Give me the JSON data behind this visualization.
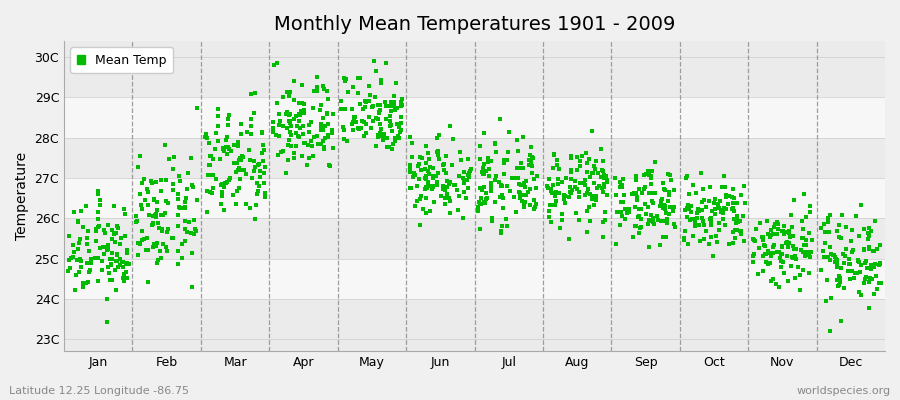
{
  "title": "Monthly Mean Temperatures 1901 - 2009",
  "ylabel": "Temperature",
  "bottom_left": "Latitude 12.25 Longitude -86.75",
  "bottom_right": "worldspecies.org",
  "legend_label": "Mean Temp",
  "dot_color": "#00BB00",
  "ytick_labels": [
    "23C",
    "24C",
    "25C",
    "26C",
    "27C",
    "28C",
    "29C",
    "30C"
  ],
  "ytick_values": [
    23,
    24,
    25,
    26,
    27,
    28,
    29,
    30
  ],
  "ylim": [
    22.7,
    30.4
  ],
  "months": [
    "Jan",
    "Feb",
    "Mar",
    "Apr",
    "May",
    "Jun",
    "Jul",
    "Aug",
    "Sep",
    "Oct",
    "Nov",
    "Dec"
  ],
  "month_means": [
    25.15,
    26.0,
    27.3,
    28.3,
    28.65,
    27.05,
    26.85,
    26.75,
    26.35,
    26.05,
    25.3,
    25.05
  ],
  "month_stds": [
    0.58,
    0.7,
    0.7,
    0.58,
    0.52,
    0.5,
    0.48,
    0.48,
    0.44,
    0.48,
    0.52,
    0.58
  ],
  "n_years": 109,
  "background_bands": [
    {
      "ymin": 22.7,
      "ymax": 24,
      "color": "#ebebeb"
    },
    {
      "ymin": 24,
      "ymax": 25,
      "color": "#f7f7f7"
    },
    {
      "ymin": 25,
      "ymax": 26,
      "color": "#ebebeb"
    },
    {
      "ymin": 26,
      "ymax": 27,
      "color": "#f7f7f7"
    },
    {
      "ymin": 27,
      "ymax": 28,
      "color": "#ebebeb"
    },
    {
      "ymin": 28,
      "ymax": 29,
      "color": "#f7f7f7"
    },
    {
      "ymin": 29,
      "ymax": 30.4,
      "color": "#ebebeb"
    }
  ],
  "fig_bg_color": "#f0f0f0",
  "plot_bg_color": "#f7f7f7",
  "title_fontsize": 14,
  "axis_label_fontsize": 10,
  "tick_fontsize": 9
}
